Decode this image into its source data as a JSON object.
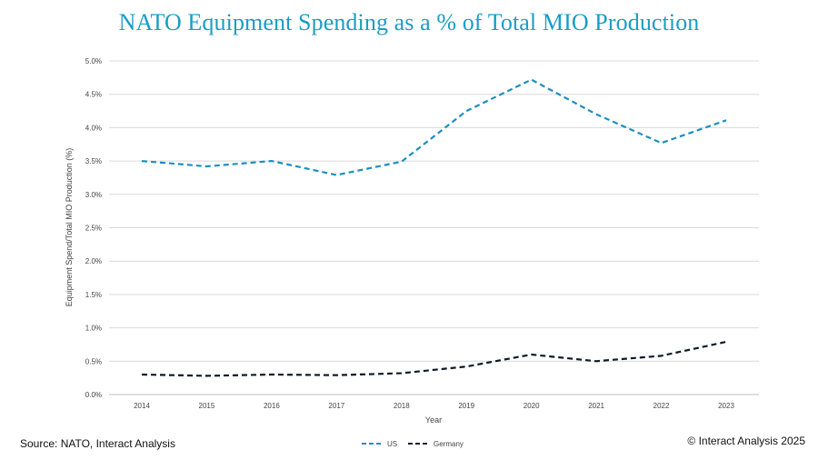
{
  "chart_data": {
    "type": "line",
    "title": "NATO Equipment Spending as a % of Total MIO Production",
    "xlabel": "Year",
    "ylabel": "Equipment Spend/Total MIO Production (%)",
    "categories": [
      "2014",
      "2015",
      "2016",
      "2017",
      "2018",
      "2019",
      "2020",
      "2021",
      "2022",
      "2023"
    ],
    "y_ticks": [
      "0.0%",
      "0.5%",
      "1.0%",
      "1.5%",
      "2.0%",
      "2.5%",
      "3.0%",
      "3.5%",
      "4.0%",
      "4.5%",
      "5.0%"
    ],
    "ylim": [
      0,
      5
    ],
    "grid": "horizontal",
    "legend_position": "bottom",
    "series": [
      {
        "name": "US",
        "color": "#1b8fc2",
        "style": "dashed",
        "values": [
          3.5,
          3.42,
          3.5,
          3.29,
          3.49,
          4.25,
          4.72,
          4.2,
          3.77,
          4.11
        ]
      },
      {
        "name": "Germany",
        "color": "#0d1b2a",
        "style": "dashed",
        "values": [
          0.3,
          0.28,
          0.3,
          0.29,
          0.32,
          0.42,
          0.6,
          0.5,
          0.58,
          0.79
        ]
      }
    ]
  },
  "footer": {
    "source": "Source: NATO, Interact Analysis",
    "copyright": "© Interact Analysis 2025"
  }
}
